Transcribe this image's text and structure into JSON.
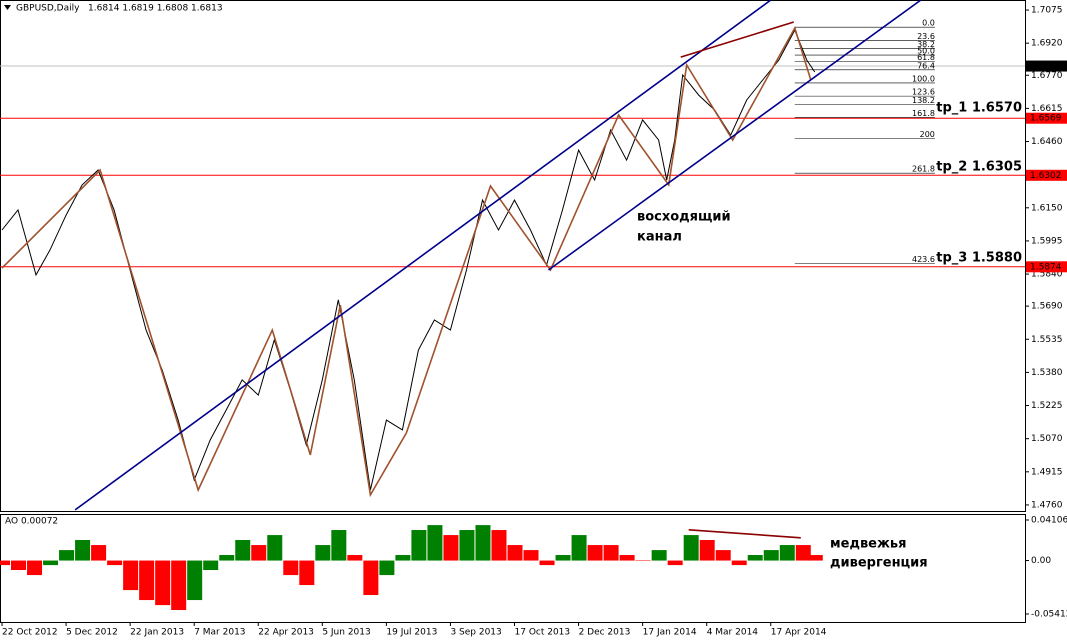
{
  "chart_data": [
    {
      "type": "line",
      "title": "GBPUSD,Daily",
      "subtitle": "1.6814 1.6819 1.6808 1.6813",
      "xlim": [
        -1,
        511
      ],
      "ylim": [
        1.4727,
        1.7122
      ],
      "yticks": [
        1.7075,
        {
          "value": 1.692,
          "label": "1.6920"
        },
        {
          "value": 1.677,
          "label": "1.6770"
        },
        1.6615,
        {
          "value": 1.646,
          "label": "1.6460"
        },
        1.6305,
        {
          "value": 1.615,
          "label": "1.6150"
        },
        1.5995,
        {
          "value": 1.584,
          "label": "1.5840"
        },
        {
          "value": 1.569,
          "label": "1.5690"
        },
        1.5535,
        {
          "value": 1.538,
          "label": "1.5380"
        },
        1.5225,
        {
          "value": 1.507,
          "label": "1.5070"
        },
        1.4915,
        {
          "value": 1.476,
          "label": "1.4760"
        }
      ],
      "series": [
        {
          "color": "#000000",
          "x": [
            0,
            8,
            17,
            24,
            32,
            40,
            48,
            56,
            64,
            72,
            80,
            88,
            96,
            104,
            112,
            120,
            128,
            136,
            144,
            152,
            160,
            168,
            176,
            184,
            192,
            200,
            208,
            216,
            224,
            232,
            240,
            248,
            256,
            264,
            272,
            280,
            288,
            296,
            304,
            312,
            320,
            328,
            332,
            336,
            340,
            348,
            356,
            364,
            372,
            380,
            388,
            396,
            402,
            406
          ],
          "values": [
            1.6046,
            1.614,
            1.5836,
            1.5953,
            1.6116,
            1.6257,
            1.6327,
            1.614,
            1.5859,
            1.5578,
            1.5391,
            1.5157,
            1.4877,
            1.5064,
            1.5204,
            1.5345,
            1.5274,
            1.5532,
            1.5298,
            1.5041,
            1.5345,
            1.5719,
            1.5345,
            1.483,
            1.5157,
            1.5111,
            1.5485,
            1.5625,
            1.5578,
            1.5859,
            1.6186,
            1.6046,
            1.6186,
            1.6046,
            1.5882,
            1.614,
            1.642,
            1.628,
            1.6514,
            1.6373,
            1.6561,
            1.6467,
            1.628,
            1.6467,
            1.6771,
            1.6677,
            1.6607,
            1.649,
            1.6654,
            1.6748,
            1.6841,
            1.6981,
            1.6841,
            1.6785
          ]
        },
        {
          "color": "#a0522d",
          "x": [
            0,
            49,
            98,
            135,
            154,
            169,
            184,
            202,
            244,
            274,
            308,
            333,
            342,
            365,
            396,
            404
          ],
          "values": [
            1.5868,
            1.6327,
            1.483,
            1.5578,
            1.4994,
            1.5695,
            1.4807,
            1.5097,
            1.6252,
            1.5859,
            1.6584,
            1.6257,
            1.6818,
            1.6467,
            1.6991,
            1.6748
          ]
        },
        {
          "color": "#00008b",
          "x": [
            36.5,
            384
          ],
          "values": [
            1.4737,
            1.7122
          ]
        },
        {
          "color": "#00008b",
          "x": [
            273,
            459
          ],
          "values": [
            1.5859,
            1.7122
          ]
        },
        {
          "color": "#8b0000",
          "x": [
            339,
            395.5
          ],
          "values": [
            1.6855,
            1.7019
          ]
        }
      ],
      "hlines": {
        "color": "#ff0000",
        "values": [
          1.6569,
          1.6302,
          1.5874
        ]
      },
      "last": 1.6813,
      "fibo": {
        "start": 1.6995,
        "end": 1.6734,
        "x": [
          396,
          466
        ],
        "levels": [
          {
            "value": 0,
            "label": "0.0"
          },
          23.6,
          38.2,
          {
            "value": 50,
            "label": "50.0"
          },
          61.8,
          76.4,
          {
            "value": 100,
            "label": "100.0"
          },
          123.6,
          138.2,
          161.8,
          200,
          261.8,
          423.6
        ]
      },
      "annotations": [
        "tp_1 1.6570",
        "tp_2 1.6305",
        "tp_3 1.5880",
        "восходящий",
        "канал"
      ]
    },
    {
      "type": "bar",
      "title": "AO 0.00072",
      "xlim": [
        -1,
        511
      ],
      "ylim": [
        -0.06222,
        0.04714
      ],
      "yticks": [
        0.04106,
        {
          "value": 0,
          "label": "0.00"
        },
        -0.05412
      ],
      "xticks": [
        {
          "value": 0,
          "label": "22 Oct 2012"
        },
        {
          "value": 32,
          "label": "5 Dec 2012"
        },
        {
          "value": 64,
          "label": "22 Jan 2013"
        },
        {
          "value": 96,
          "label": "7 Mar 2013"
        },
        {
          "value": 128,
          "label": "22 Apr 2013"
        },
        {
          "value": 160,
          "label": "5 Jun 2013"
        },
        {
          "value": 192,
          "label": "19 Jul 2013"
        },
        {
          "value": 224,
          "label": "3 Sep 2013"
        },
        {
          "value": 256,
          "label": "17 Oct 2013"
        },
        {
          "value": 288,
          "label": "2 Dec 2013"
        },
        {
          "value": 320,
          "label": "17 Jan 2014"
        },
        {
          "value": 352,
          "label": "4 Mar 2014"
        },
        {
          "value": 384,
          "label": "17 Apr 2014"
        }
      ],
      "up_color": "#008000",
      "down_color": "#ff0000",
      "x": [
        0,
        8,
        16,
        24,
        32,
        40,
        48,
        56,
        64,
        72,
        80,
        88,
        96,
        104,
        112,
        120,
        128,
        136,
        144,
        152,
        160,
        168,
        176,
        184,
        192,
        200,
        208,
        216,
        224,
        232,
        240,
        248,
        256,
        264,
        272,
        280,
        288,
        296,
        304,
        312,
        320,
        328,
        336,
        344,
        352,
        360,
        368,
        376,
        384,
        392,
        400,
        406
      ],
      "values": [
        -0.0046,
        -0.0096,
        -0.0147,
        -0.0046,
        0.0106,
        0.0208,
        0.0157,
        -0.0046,
        -0.0299,
        -0.04,
        -0.0451,
        -0.0501,
        -0.04,
        -0.0096,
        0.0056,
        0.0208,
        0.0157,
        0.0258,
        -0.0147,
        -0.0248,
        0.0157,
        0.0309,
        0.0056,
        -0.0349,
        -0.0147,
        0.0056,
        0.0309,
        0.0359,
        0.0258,
        0.0309,
        0.0359,
        0.0309,
        0.0157,
        0.0106,
        -0.0046,
        0.0056,
        0.0258,
        0.0157,
        0.0157,
        0.0056,
        0.0005,
        0.0106,
        -0.0046,
        0.0258,
        0.0208,
        0.0106,
        -0.0046,
        0.0056,
        0.0106,
        0.0157,
        0.0157,
        0.0056
      ],
      "series": [
        {
          "color": "#8b0000",
          "x": [
            343,
            399
          ],
          "values": [
            0.0311,
            0.023
          ]
        }
      ],
      "annotations": [
        "медвежья",
        "дивергенция"
      ]
    }
  ]
}
